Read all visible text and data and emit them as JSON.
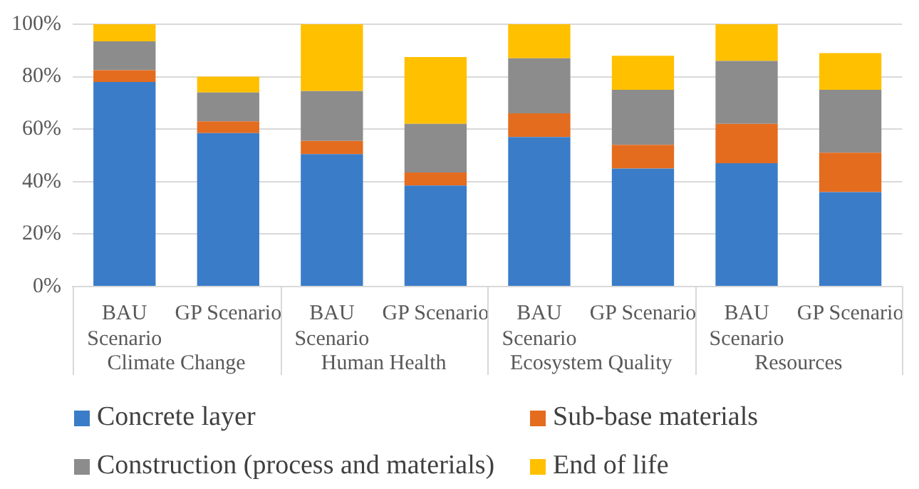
{
  "chart_data": {
    "type": "bar",
    "stacked": true,
    "categories": [
      "BAU Scenario",
      "GP Scenario",
      "BAU Scenario",
      "GP Scenario",
      "BAU Scenario",
      "GP Scenario",
      "BAU Scenario",
      "GP Scenario"
    ],
    "annotations": [
      "Climate Change",
      "Human Health",
      "Ecosystem Quality",
      "Resources"
    ],
    "series": [
      {
        "name": "Concrete layer",
        "color": "#3a7cc8",
        "values": [
          78,
          58.5,
          50.5,
          38.5,
          57,
          45,
          47,
          36
        ]
      },
      {
        "name": "Sub-base materials",
        "color": "#e46c1f",
        "values": [
          4.5,
          4.5,
          5,
          5,
          9,
          9,
          15,
          15
        ]
      },
      {
        "name": "Construction (process and materials)",
        "color": "#8c8c8c",
        "values": [
          11,
          11,
          19,
          18.5,
          21,
          21,
          24,
          24
        ]
      },
      {
        "name": "End of life",
        "color": "#ffc000",
        "values": [
          6.5,
          6,
          25.5,
          25.5,
          13,
          13,
          14,
          14
        ]
      }
    ],
    "ylim": [
      0,
      100
    ],
    "yticks": [
      {
        "value": 0,
        "label": "0%"
      },
      {
        "value": 20,
        "label": "20%"
      },
      {
        "value": 40,
        "label": "40%"
      },
      {
        "value": 60,
        "label": "60%"
      },
      {
        "value": 80,
        "label": "80%"
      },
      {
        "value": 100,
        "label": "100%"
      }
    ],
    "grid": "y",
    "legend": "bottom"
  }
}
